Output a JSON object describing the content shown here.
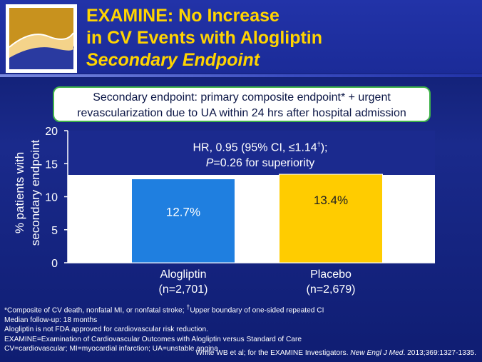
{
  "header": {
    "title_line1": "EXAMINE: No Increase",
    "title_line2": "in CV Events with Alogliptin",
    "title_line3": "Secondary Endpoint"
  },
  "endpoint_box": {
    "line1": "Secondary endpoint: primary composite endpoint* + urgent",
    "line2": "revascularization due to UA within 24 hrs after hospital admission"
  },
  "hr_text": {
    "line1_prefix": "HR, 0.95 (95% CI, ≤1.14",
    "line1_sup": "†",
    "line1_suffix": ");",
    "line2_p": "P",
    "line2_rest": "=0.26 for superiority"
  },
  "chart_data": {
    "type": "bar",
    "categories": [
      "Alogliptin",
      "Placebo"
    ],
    "category_sublabels": [
      "(n=2,701)",
      "(n=2,679)"
    ],
    "values": [
      12.7,
      13.4
    ],
    "data_labels": [
      "12.7%",
      "13.4%"
    ],
    "colors": [
      "#1f7fe0",
      "#ffcc00"
    ],
    "ylabel_line1": "% patients with",
    "ylabel_line2": "secondary endpoint",
    "ylim": [
      0,
      20
    ],
    "yticks": [
      0,
      5,
      10,
      15,
      20
    ],
    "plot_bg": "#ffffff"
  },
  "footnotes": {
    "line1_a": "*Composite of CV death, nonfatal MI, or nonfatal stroke; ",
    "line1_sup": "†",
    "line1_b": "Upper boundary of one-sided repeated CI",
    "line2": "Median follow-up: 18 months",
    "line3": "Alogliptin is not FDA approved for cardiovascular risk reduction.",
    "line4": "EXAMINE=Examination of Cardiovascular Outcomes with Alogliptin versus Standard of Care",
    "line5": "CV=cardiovascular; MI=myocardial infarction; UA=unstable angina"
  },
  "citation": {
    "authors": "White WB et al; for the EXAMINE Investigators. ",
    "journal": "New Engl J Med",
    "rest": ". 2013;369:1327-1335."
  }
}
